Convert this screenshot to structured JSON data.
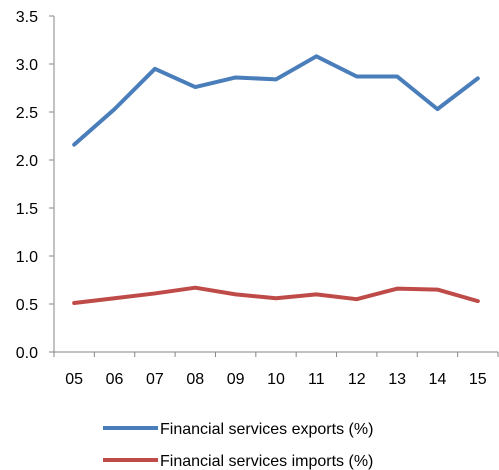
{
  "chart_data": {
    "type": "line",
    "title": "",
    "xlabel": "",
    "ylabel": "",
    "categories": [
      "05",
      "06",
      "07",
      "08",
      "09",
      "10",
      "11",
      "12",
      "13",
      "14",
      "15"
    ],
    "ylim": [
      0,
      3.5
    ],
    "yticks": [
      "0.0",
      "0.5",
      "1.0",
      "1.5",
      "2.0",
      "2.5",
      "3.0",
      "3.5"
    ],
    "grid": false,
    "legend_position": "bottom",
    "series": [
      {
        "name": "Financial services exports (%)",
        "color": "#4a7ebb",
        "values": [
          2.16,
          2.53,
          2.95,
          2.76,
          2.86,
          2.84,
          3.08,
          2.87,
          2.87,
          2.53,
          2.85
        ]
      },
      {
        "name": "Financial services imports (%)",
        "color": "#be4b48",
        "values": [
          0.51,
          0.56,
          0.61,
          0.67,
          0.6,
          0.56,
          0.6,
          0.55,
          0.66,
          0.65,
          0.53
        ]
      }
    ]
  }
}
